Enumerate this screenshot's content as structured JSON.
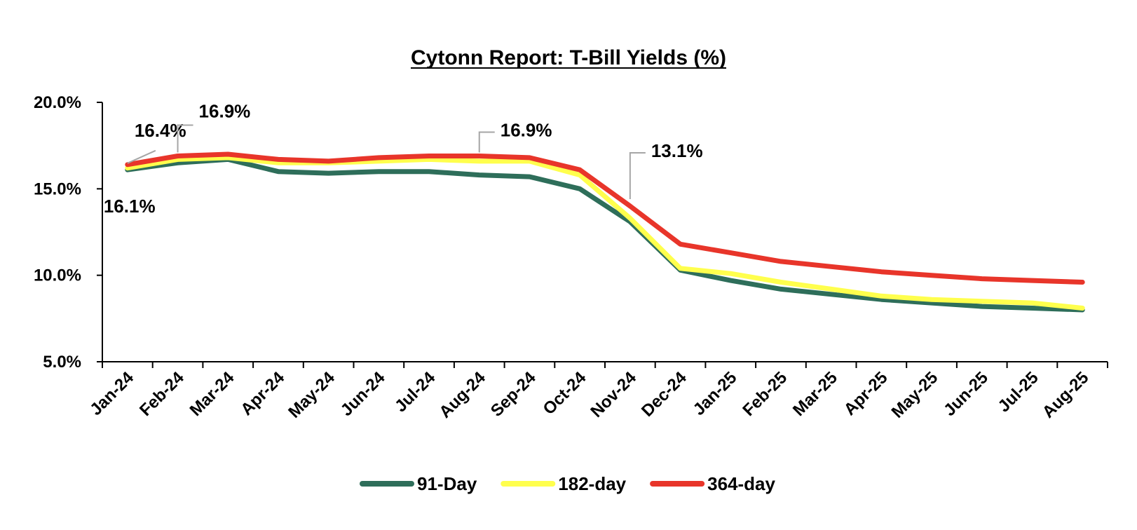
{
  "chart_data": {
    "type": "line",
    "title": "Cytonn Report: T-Bill Yields (%)",
    "xlabel": "",
    "ylabel": "",
    "categories": [
      "Jan-24",
      "Feb-24",
      "Mar-24",
      "Apr-24",
      "May-24",
      "Jun-24",
      "Jul-24",
      "Aug-24",
      "Sep-24",
      "Oct-24",
      "Nov-24",
      "Dec-24",
      "Jan-25",
      "Feb-25",
      "Mar-25",
      "Apr-25",
      "May-25",
      "Jun-25",
      "Jul-25",
      "Aug-25"
    ],
    "ylim": [
      5,
      20
    ],
    "yticks": [
      5,
      10,
      15,
      20
    ],
    "ytick_labels": [
      "5.0%",
      "10.0%",
      "15.0%",
      "20.0%"
    ],
    "grid": false,
    "legend_position": "bottom",
    "series": [
      {
        "name": "91-Day",
        "color": "#2e6e5a",
        "values": [
          16.1,
          16.5,
          16.7,
          16.0,
          15.9,
          16.0,
          16.0,
          15.8,
          15.7,
          15.0,
          13.1,
          10.3,
          9.7,
          9.2,
          8.9,
          8.6,
          8.4,
          8.2,
          8.1,
          8.0
        ]
      },
      {
        "name": "182-day",
        "color": "#ffff4d",
        "values": [
          16.2,
          16.7,
          16.8,
          16.5,
          16.5,
          16.6,
          16.7,
          16.6,
          16.6,
          15.8,
          13.3,
          10.4,
          10.1,
          9.6,
          9.2,
          8.8,
          8.6,
          8.5,
          8.4,
          8.1
        ]
      },
      {
        "name": "364-day",
        "color": "#e8352a",
        "values": [
          16.4,
          16.9,
          17.0,
          16.7,
          16.6,
          16.8,
          16.9,
          16.9,
          16.8,
          16.1,
          14.0,
          11.8,
          11.3,
          10.8,
          10.5,
          10.2,
          10.0,
          9.8,
          9.7,
          9.6
        ]
      }
    ],
    "data_labels": [
      {
        "text": "16.1%"
      },
      {
        "text": "16.4%"
      },
      {
        "text": "16.9%"
      },
      {
        "text": "16.9%"
      },
      {
        "text": "13.1%"
      }
    ]
  }
}
